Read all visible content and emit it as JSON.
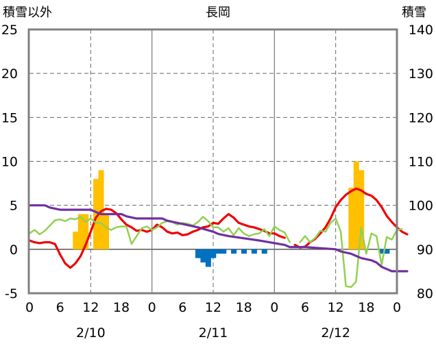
{
  "chart_data": {
    "type": "line",
    "title": "長岡",
    "ylabel_left": "積雪以外",
    "ylabel_right": "積雪",
    "ylim_left": [
      -5,
      25
    ],
    "ylim_right": [
      80,
      140
    ],
    "y_ticks_left": [
      "-5",
      "0",
      "5",
      "10",
      "15",
      "20",
      "25"
    ],
    "y_ticks_right": [
      "80",
      "90",
      "100",
      "110",
      "120",
      "130",
      "140"
    ],
    "x_ticks": [
      "0",
      "6",
      "12",
      "18",
      "0",
      "6",
      "12",
      "18",
      "0",
      "6",
      "12",
      "18",
      "0"
    ],
    "day_labels": [
      "2/10",
      "2/11",
      "2/12"
    ],
    "grid": true,
    "colors": {
      "red": "#ee0000",
      "green": "#92d050",
      "purple": "#7030a0",
      "bar_pos": "#ffc000",
      "bar_neg": "#0070c0"
    },
    "series": [
      {
        "color_key": "red",
        "axis": "left",
        "points": [
          [
            0,
            1.0
          ],
          [
            1,
            0.8
          ],
          [
            2,
            0.7
          ],
          [
            3,
            0.8
          ],
          [
            4,
            0.8
          ],
          [
            5,
            0.6
          ],
          [
            6,
            -0.6
          ],
          [
            7,
            -1.6
          ],
          [
            8,
            -2.1
          ],
          [
            9,
            -1.6
          ],
          [
            10,
            -0.8
          ],
          [
            11,
            0.5
          ],
          [
            12,
            2.0
          ],
          [
            13,
            3.6
          ],
          [
            14,
            4.3
          ],
          [
            15,
            4.6
          ],
          [
            16,
            4.5
          ],
          [
            17,
            4.1
          ],
          [
            18,
            3.4
          ],
          [
            19,
            2.8
          ],
          [
            20,
            2.5
          ],
          [
            21,
            2.1
          ],
          [
            22,
            2.2
          ],
          [
            23,
            2.0
          ],
          [
            24,
            2.2
          ],
          [
            25,
            2.8
          ],
          [
            26,
            2.5
          ],
          [
            27,
            2.0
          ],
          [
            28,
            1.8
          ],
          [
            29,
            1.9
          ],
          [
            30,
            1.6
          ],
          [
            31,
            1.7
          ],
          [
            32,
            2.0
          ],
          [
            33,
            2.2
          ],
          [
            34,
            2.5
          ],
          [
            35,
            2.6
          ],
          [
            36,
            3.0
          ],
          [
            37,
            2.9
          ],
          [
            38,
            3.5
          ],
          [
            39,
            4.0
          ],
          [
            40,
            3.6
          ],
          [
            41,
            3.0
          ],
          [
            42,
            2.8
          ],
          [
            43,
            2.6
          ],
          [
            44,
            2.5
          ],
          [
            45,
            2.3
          ],
          [
            46,
            2.1
          ],
          [
            47,
            1.8
          ],
          [
            48,
            1.8
          ],
          [
            49,
            1.5
          ],
          [
            50,
            1.3
          ],
          null,
          [
            52,
            0.5
          ],
          [
            53,
            0.2
          ],
          [
            54,
            0.3
          ],
          [
            55,
            0.8
          ],
          [
            56,
            1.2
          ],
          [
            57,
            1.8
          ],
          [
            58,
            2.5
          ],
          [
            59,
            3.5
          ],
          [
            60,
            4.8
          ],
          [
            61,
            5.6
          ],
          [
            62,
            6.2
          ],
          [
            63,
            6.6
          ],
          [
            64,
            6.9
          ],
          [
            65,
            6.7
          ],
          [
            66,
            6.3
          ],
          [
            67,
            6.1
          ],
          [
            68,
            5.6
          ],
          [
            69,
            4.8
          ],
          [
            70,
            3.8
          ],
          [
            71,
            3.1
          ],
          [
            72,
            2.5
          ],
          [
            73,
            2.0
          ],
          [
            74,
            1.7
          ]
        ]
      },
      {
        "color_key": "green",
        "axis": "left",
        "points": [
          [
            0,
            1.8
          ],
          [
            1,
            2.2
          ],
          [
            2,
            1.7
          ],
          [
            3,
            2.1
          ],
          [
            4,
            2.7
          ],
          [
            5,
            3.3
          ],
          [
            6,
            3.4
          ],
          [
            7,
            3.2
          ],
          [
            8,
            3.5
          ],
          [
            9,
            3.4
          ],
          [
            10,
            3.7
          ],
          [
            11,
            3.1
          ],
          [
            12,
            3.5
          ],
          [
            13,
            3.0
          ],
          [
            14,
            3.0
          ],
          [
            15,
            2.5
          ],
          [
            16,
            2.2
          ],
          [
            17,
            2.5
          ],
          [
            18,
            2.6
          ],
          [
            19,
            2.6
          ],
          [
            20,
            0.6
          ],
          [
            21,
            1.5
          ],
          [
            22,
            2.4
          ],
          [
            23,
            2.6
          ],
          [
            24,
            2.2
          ],
          [
            25,
            2.5
          ],
          [
            26,
            3.0
          ],
          [
            27,
            3.2
          ],
          [
            28,
            3.1
          ],
          [
            29,
            2.8
          ],
          [
            30,
            3.0
          ],
          [
            31,
            2.9
          ],
          [
            32,
            2.7
          ],
          [
            33,
            3.1
          ],
          [
            34,
            3.7
          ],
          [
            35,
            3.2
          ],
          [
            36,
            2.5
          ],
          [
            37,
            2.5
          ],
          [
            38,
            2.0
          ],
          [
            39,
            2.4
          ],
          [
            40,
            1.6
          ],
          [
            41,
            2.4
          ],
          [
            42,
            1.8
          ],
          [
            43,
            1.5
          ],
          [
            44,
            1.7
          ],
          [
            45,
            1.8
          ],
          [
            46,
            2.3
          ],
          [
            47,
            1.5
          ],
          [
            48,
            2.6
          ],
          [
            49,
            2.2
          ],
          [
            50,
            1.9
          ],
          [
            51,
            0.8
          ],
          null,
          [
            53,
            0.8
          ],
          [
            54,
            1.5
          ],
          [
            55,
            0.8
          ],
          [
            56,
            1.3
          ],
          [
            57,
            2.1
          ],
          [
            58,
            2.0
          ],
          [
            59,
            3.0
          ],
          [
            60,
            3.5
          ],
          [
            61,
            2.0
          ],
          [
            62,
            -4.2
          ],
          [
            63,
            -4.3
          ],
          [
            64,
            -3.7
          ],
          [
            65,
            2.5
          ],
          [
            66,
            -0.5
          ],
          [
            67,
            1.8
          ],
          [
            68,
            1.5
          ],
          [
            69,
            -1.8
          ],
          [
            70,
            1.4
          ],
          [
            71,
            1.1
          ],
          [
            72,
            2.2
          ],
          [
            73,
            2.3
          ]
        ]
      },
      {
        "color_key": "purple",
        "axis": "right",
        "points": [
          [
            0,
            100
          ],
          [
            3,
            100
          ],
          [
            4,
            99.5
          ],
          [
            6,
            99
          ],
          [
            12,
            99
          ],
          [
            13,
            98.5
          ],
          [
            14,
            98
          ],
          [
            18,
            98
          ],
          [
            19,
            97.5
          ],
          [
            21,
            97
          ],
          [
            26,
            97
          ],
          [
            27,
            96.5
          ],
          [
            29,
            96
          ],
          [
            33,
            95
          ],
          [
            36,
            94
          ],
          [
            37,
            93.5
          ],
          [
            39,
            93
          ],
          [
            45,
            92
          ],
          [
            50,
            91
          ],
          [
            51,
            90.5
          ],
          [
            54,
            90.5
          ],
          [
            60,
            90
          ],
          [
            61,
            89.5
          ],
          [
            63,
            89
          ],
          [
            64,
            88.5
          ],
          [
            65,
            88
          ],
          [
            67,
            87.5
          ],
          [
            68,
            87
          ],
          [
            69,
            86
          ],
          [
            70,
            85.5
          ],
          [
            71,
            85
          ],
          [
            74,
            85
          ]
        ]
      },
      {
        "color_key": "bar_pos",
        "type": "bar",
        "axis": "left",
        "bars": [
          [
            9,
            2
          ],
          [
            10,
            4
          ],
          [
            11,
            4
          ],
          [
            13,
            8
          ],
          [
            14,
            9
          ],
          [
            15,
            4
          ],
          [
            63,
            7
          ],
          [
            64,
            10
          ],
          [
            65,
            9
          ]
        ]
      },
      {
        "color_key": "bar_neg",
        "type": "bar",
        "axis": "left",
        "bars": [
          [
            33,
            -1
          ],
          [
            34,
            -1.5
          ],
          [
            35,
            -2
          ],
          [
            36,
            -1
          ],
          [
            37,
            -0.5
          ],
          [
            38,
            -0.5
          ],
          [
            40,
            -0.5
          ],
          [
            42,
            -0.5
          ],
          [
            44,
            -0.5
          ],
          [
            46,
            -0.5
          ],
          [
            69,
            -0.5
          ],
          [
            70,
            -0.5
          ]
        ]
      }
    ]
  }
}
